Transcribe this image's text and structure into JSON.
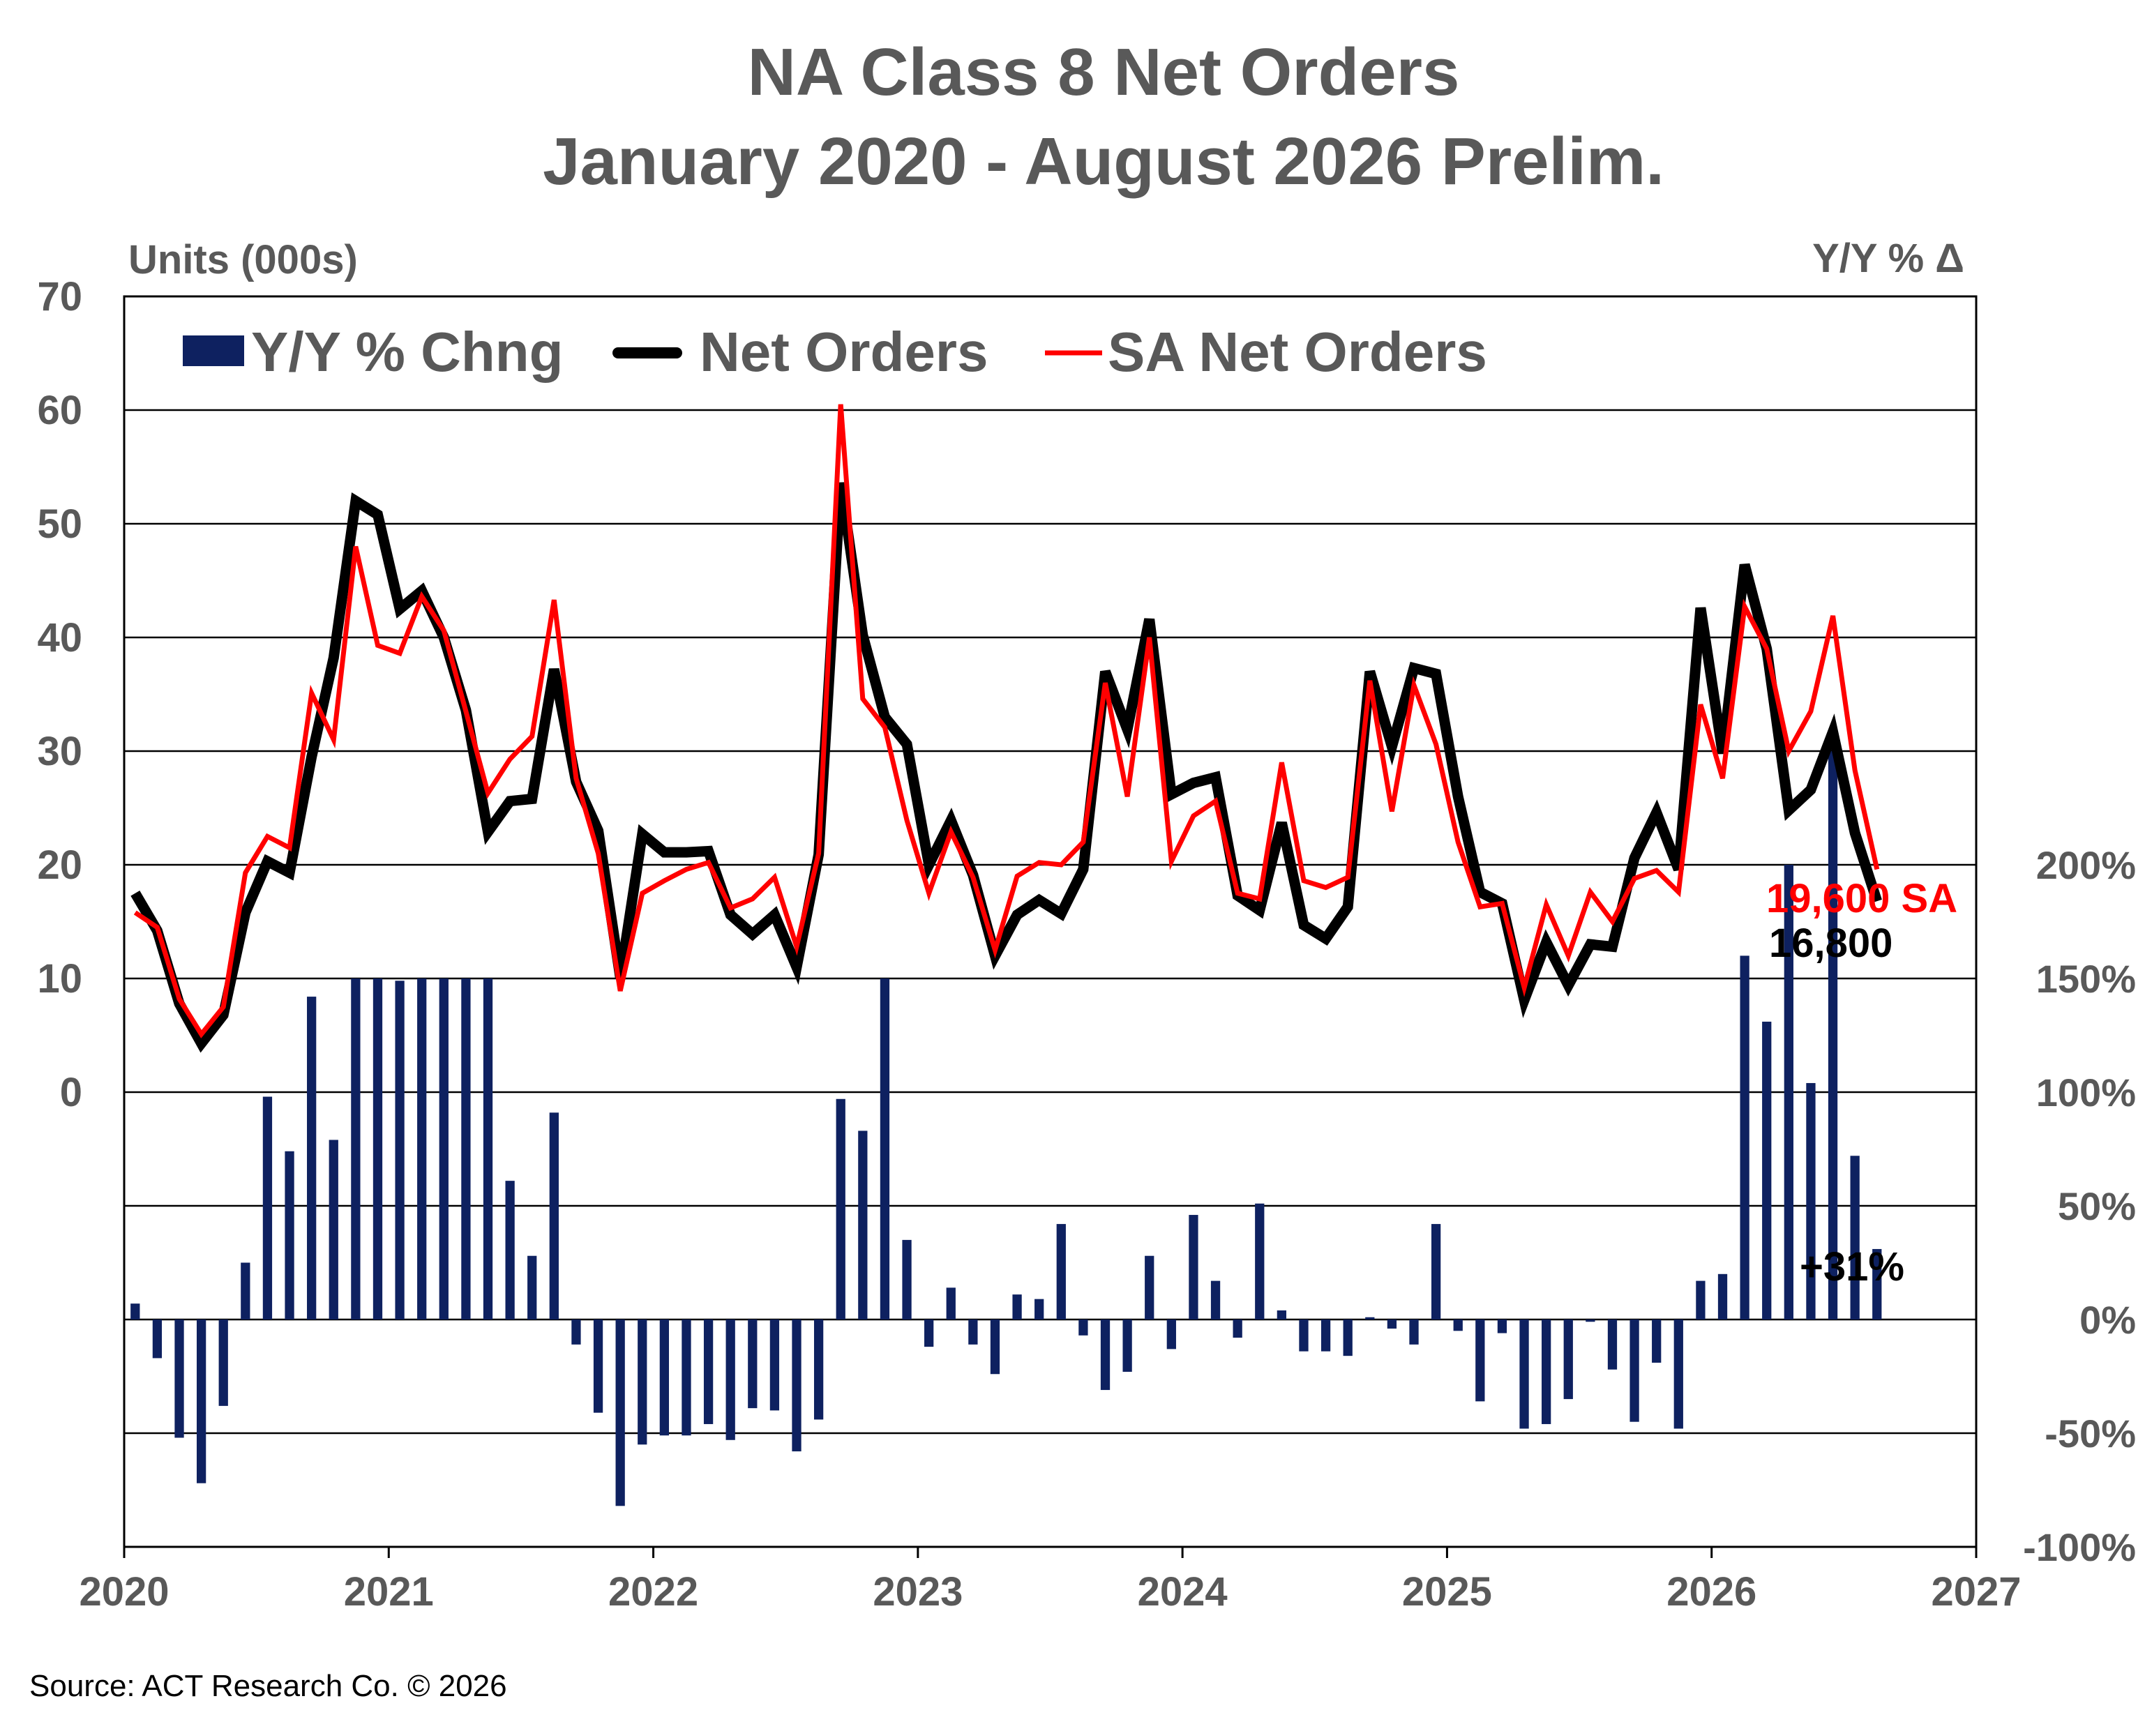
{
  "chart_data": {
    "type": "line",
    "title": "NA Class 8 Net Orders",
    "subtitle": "January 2020 - August 2026 Prelim.",
    "ylabel_left": "Units (000s)",
    "ylabel_right": "Y/Y % Δ",
    "source": "Source: ACT Research Co. © 2026",
    "left_axis": {
      "ylim": [
        -40,
        70
      ],
      "ticks": [
        70,
        60,
        50,
        40,
        30,
        20,
        10,
        0
      ]
    },
    "right_axis": {
      "ylim": [
        -100,
        450
      ],
      "ticks": [
        "200%",
        "150%",
        "100%",
        "50%",
        "0%",
        "-50%",
        "-100%"
      ],
      "tick_values": [
        200,
        150,
        100,
        50,
        0,
        -50,
        -100
      ]
    },
    "x_range": [
      2020,
      2027
    ],
    "x_ticks": [
      "2020",
      "2021",
      "2022",
      "2023",
      "2024",
      "2025",
      "2026",
      "2027"
    ],
    "grid": true,
    "legend_position": "top-left",
    "series": [
      {
        "name": "Y/Y % Chng",
        "kind": "bar",
        "axis": "right",
        "color": "#0e2160",
        "values": [
          7,
          -17,
          -52,
          -72,
          -38,
          25,
          98,
          74,
          142,
          79,
          150,
          150,
          149,
          150,
          150,
          150,
          150,
          61,
          28,
          91,
          -11,
          -41,
          -82,
          -55,
          -51,
          -51,
          -46,
          -53,
          -39,
          -40,
          -58,
          -44,
          97,
          83,
          150,
          35,
          -12,
          14,
          -11,
          -24,
          11,
          9,
          42,
          -7,
          -31,
          -23,
          28,
          -13,
          46,
          17,
          -8,
          51,
          4,
          -14,
          -14,
          -16,
          1,
          -4,
          -11,
          42,
          -5,
          -36,
          -6,
          -48,
          -46,
          -35,
          -1,
          -22,
          -45,
          -19,
          -48,
          17,
          20,
          160,
          131,
          200,
          104,
          250,
          72,
          31
        ]
      },
      {
        "name": "Net Orders",
        "kind": "line",
        "axis": "left",
        "color": "#000000",
        "values": [
          17.5,
          14.2,
          7.8,
          4.3,
          6.8,
          15.8,
          20.3,
          19.3,
          29.5,
          38.2,
          52.0,
          50.8,
          42.5,
          44.1,
          40.0,
          33.6,
          22.9,
          25.6,
          25.8,
          37.2,
          27.3,
          23.0,
          10.1,
          22.7,
          21.1,
          21.1,
          21.2,
          15.6,
          13.9,
          15.6,
          11.0,
          20.9,
          53.6,
          40.2,
          33.0,
          30.6,
          20.0,
          23.9,
          19.1,
          12.0,
          15.6,
          16.9,
          15.7,
          19.6,
          37.0,
          31.9,
          41.6,
          26.2,
          27.2,
          27.7,
          17.3,
          16.0,
          23.7,
          14.7,
          13.5,
          16.3,
          37.0,
          30.4,
          37.3,
          36.8,
          26.0,
          17.6,
          16.6,
          8.1,
          13.2,
          9.4,
          13.0,
          12.8,
          20.6,
          24.6,
          19.6,
          42.6,
          29.8,
          46.4,
          39.0,
          24.8,
          26.6,
          31.7,
          22.8,
          16.8
        ]
      },
      {
        "name": "SA Net Orders",
        "kind": "line",
        "axis": "left",
        "color": "#ff0000",
        "values": [
          15.8,
          14.5,
          8.2,
          5.1,
          7.5,
          19.3,
          22.5,
          21.5,
          35.1,
          31.0,
          48.0,
          39.3,
          38.6,
          43.6,
          40.6,
          33.5,
          26.3,
          29.3,
          31.3,
          43.3,
          27.6,
          21.0,
          8.9,
          17.5,
          18.6,
          19.6,
          20.2,
          16.2,
          17.0,
          18.9,
          12.8,
          21.0,
          60.5,
          34.6,
          32.1,
          23.9,
          17.5,
          22.9,
          18.9,
          12.5,
          19.0,
          20.2,
          20.0,
          22.0,
          36.0,
          26.0,
          40.0,
          20.3,
          24.3,
          25.6,
          17.5,
          17.0,
          29.0,
          18.6,
          18.0,
          18.9,
          36.2,
          24.7,
          35.8,
          30.6,
          22.0,
          16.3,
          16.6,
          9.2,
          16.5,
          12.0,
          17.6,
          15.0,
          18.8,
          19.5,
          17.6,
          34.1,
          27.6,
          42.7,
          39.0,
          30.0,
          33.5,
          41.9,
          28.3,
          19.6
        ]
      }
    ],
    "annotations": [
      {
        "text": "19,600 SA",
        "color": "#ff0000"
      },
      {
        "text": "16,800",
        "color": "#000000"
      },
      {
        "text": "+31%",
        "color": "#000000"
      }
    ]
  }
}
